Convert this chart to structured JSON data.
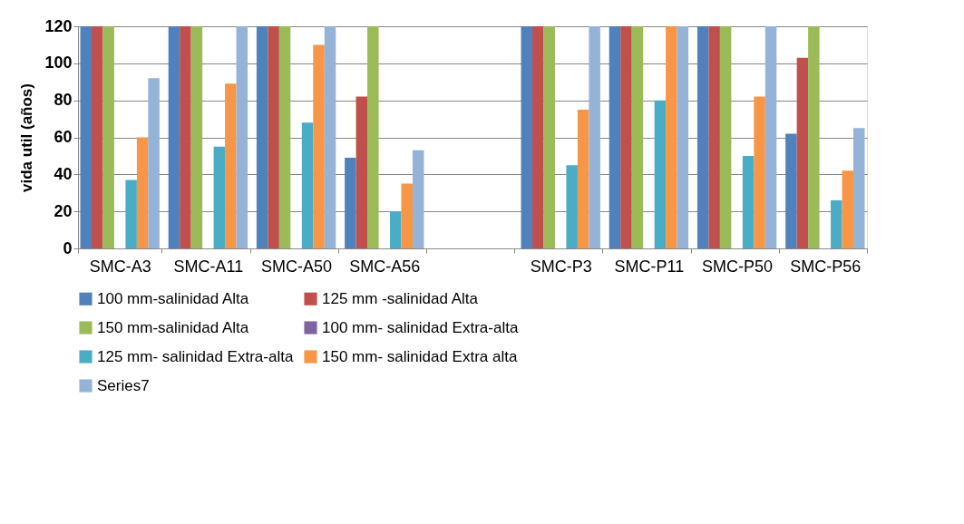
{
  "chart_data": {
    "type": "bar",
    "ylabel": "vida util (años)",
    "categories": [
      "SMC-A3",
      "SMC-A11",
      "SMC-A50",
      "SMC-A56",
      null,
      "SMC-P3",
      "SMC-P11",
      "SMC-P50",
      "SMC-P56"
    ],
    "series": [
      {
        "name": "100 mm-salinidad Alta",
        "color": "#4f81bd",
        "values": [
          120,
          120,
          120,
          49,
          null,
          120,
          120,
          120,
          62
        ]
      },
      {
        "name": "125 mm -salinidad Alta",
        "color": "#c0504d",
        "values": [
          120,
          120,
          120,
          82,
          null,
          120,
          120,
          120,
          103
        ]
      },
      {
        "name": "150 mm-salinidad Alta",
        "color": "#9bbb59",
        "values": [
          120,
          120,
          120,
          120,
          null,
          120,
          120,
          120,
          120
        ]
      },
      {
        "name": "100 mm- salinidad Extra-alta",
        "color": "#8064a2",
        "values": [
          null,
          null,
          null,
          null,
          null,
          null,
          null,
          null,
          null
        ]
      },
      {
        "name": "125 mm- salinidad Extra-alta",
        "color": "#4bacc6",
        "values": [
          37,
          55,
          68,
          20,
          null,
          45,
          80,
          50,
          26
        ]
      },
      {
        "name": "150 mm- salinidad Extra alta",
        "color": "#f79646",
        "values": [
          60,
          89,
          110,
          35,
          null,
          75,
          120,
          82,
          42
        ]
      },
      {
        "name": "Series7",
        "color": "#95b3d7",
        "values": [
          92,
          120,
          120,
          53,
          null,
          120,
          120,
          120,
          65
        ]
      }
    ],
    "ylim": [
      0,
      120
    ],
    "yticks": [
      0,
      20,
      40,
      60,
      80,
      100,
      120
    ],
    "grid": "y",
    "legend": "bottom"
  }
}
